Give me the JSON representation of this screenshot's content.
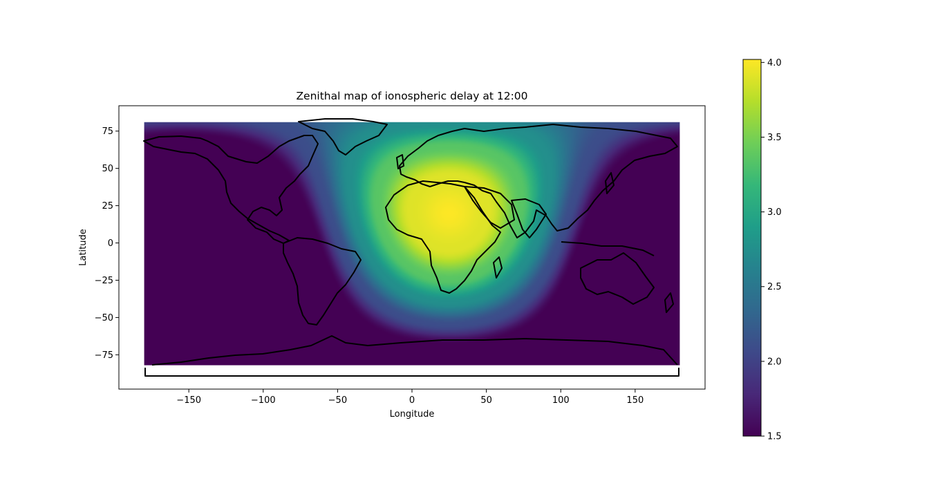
{
  "chart_data": {
    "type": "heatmap",
    "title": "Zenithal map of ionospheric delay at 12:00",
    "xlabel": "Longitude",
    "ylabel": "Latitude",
    "xlim": [
      -197,
      197
    ],
    "ylim": [
      -98,
      92
    ],
    "data_extent": {
      "lon": [
        -180,
        180
      ],
      "lat": [
        -82,
        81
      ]
    },
    "x_ticks": [
      {
        "value": -150,
        "label": "−150"
      },
      {
        "value": -100,
        "label": "−100"
      },
      {
        "value": -50,
        "label": "−50"
      },
      {
        "value": 0,
        "label": "0"
      },
      {
        "value": 50,
        "label": "50"
      },
      {
        "value": 100,
        "label": "100"
      },
      {
        "value": 150,
        "label": "150"
      }
    ],
    "y_ticks": [
      {
        "value": 75,
        "label": "75"
      },
      {
        "value": 50,
        "label": "50"
      },
      {
        "value": 25,
        "label": "25"
      },
      {
        "value": 0,
        "label": "0"
      },
      {
        "value": -25,
        "label": "−25"
      },
      {
        "value": -50,
        "label": "−50"
      },
      {
        "value": -75,
        "label": "−75"
      }
    ],
    "colorbar": {
      "colormap": "viridis",
      "vmin": 1.5,
      "vmax": 4.02,
      "ticks": [
        {
          "value": 4.0,
          "label": "4.0"
        },
        {
          "value": 3.5,
          "label": "3.5"
        },
        {
          "value": 3.0,
          "label": "3.0"
        },
        {
          "value": 2.5,
          "label": "2.5"
        },
        {
          "value": 2.0,
          "label": "2.0"
        },
        {
          "value": 1.5,
          "label": "1.5"
        }
      ]
    },
    "field_model": {
      "peak_value": 4.02,
      "peak_lon": 25,
      "peak_lat": 20,
      "floor_value": 1.5,
      "profile_points": [
        [
          0,
          4.02
        ],
        [
          25,
          3.9
        ],
        [
          45,
          3.35
        ],
        [
          60,
          2.75
        ],
        [
          75,
          2.1
        ],
        [
          88,
          1.5
        ]
      ]
    },
    "colors": {
      "viridis_stops": [
        "#440154",
        "#482878",
        "#3e4989",
        "#31688e",
        "#26828e",
        "#1f9e89",
        "#35b779",
        "#6ece58",
        "#b5de2b",
        "#fde725"
      ],
      "outline": "#000000"
    }
  }
}
